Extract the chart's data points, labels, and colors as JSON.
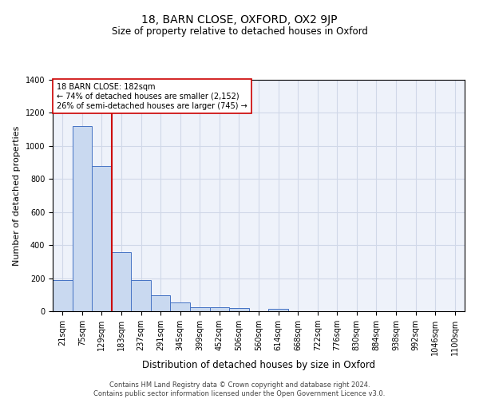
{
  "title": "18, BARN CLOSE, OXFORD, OX2 9JP",
  "subtitle": "Size of property relative to detached houses in Oxford",
  "xlabel": "Distribution of detached houses by size in Oxford",
  "ylabel": "Number of detached properties",
  "footer_line1": "Contains HM Land Registry data © Crown copyright and database right 2024.",
  "footer_line2": "Contains public sector information licensed under the Open Government Licence v3.0.",
  "categories": [
    "21sqm",
    "75sqm",
    "129sqm",
    "183sqm",
    "237sqm",
    "291sqm",
    "345sqm",
    "399sqm",
    "452sqm",
    "506sqm",
    "560sqm",
    "614sqm",
    "668sqm",
    "722sqm",
    "776sqm",
    "830sqm",
    "884sqm",
    "938sqm",
    "992sqm",
    "1046sqm",
    "1100sqm"
  ],
  "values": [
    190,
    1120,
    880,
    355,
    190,
    97,
    55,
    25,
    22,
    18,
    0,
    14,
    0,
    0,
    0,
    0,
    0,
    0,
    0,
    0,
    0
  ],
  "bar_color": "#c9d9f0",
  "bar_edge_color": "#4472c4",
  "vline_x_index": 3,
  "vline_color": "#cc0000",
  "annotation_text": "18 BARN CLOSE: 182sqm\n← 74% of detached houses are smaller (2,152)\n26% of semi-detached houses are larger (745) →",
  "annotation_box_color": "#ffffff",
  "annotation_box_edge": "#cc0000",
  "ylim": [
    0,
    1400
  ],
  "yticks": [
    0,
    200,
    400,
    600,
    800,
    1000,
    1200,
    1400
  ],
  "grid_color": "#d0d8e8",
  "bg_color": "#eef2fa",
  "title_fontsize": 10,
  "subtitle_fontsize": 8.5,
  "ylabel_fontsize": 8,
  "xlabel_fontsize": 8.5,
  "tick_fontsize": 7,
  "annotation_fontsize": 7,
  "footer_fontsize": 6
}
